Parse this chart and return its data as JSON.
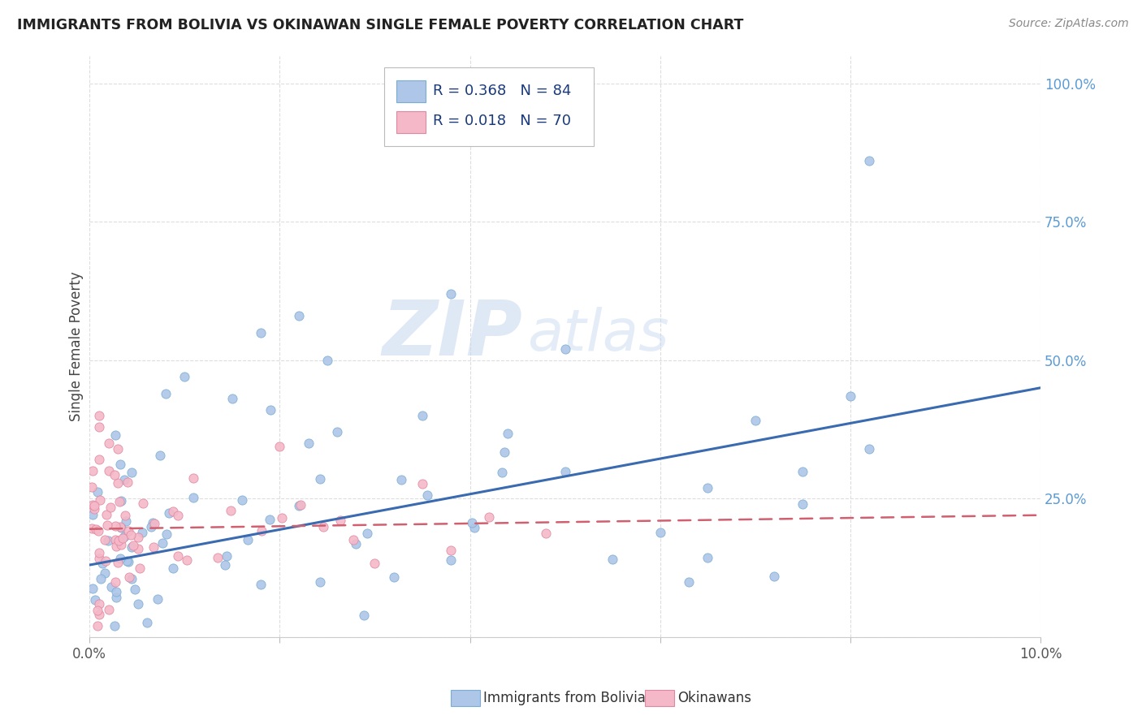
{
  "title": "IMMIGRANTS FROM BOLIVIA VS OKINAWAN SINGLE FEMALE POVERTY CORRELATION CHART",
  "source": "Source: ZipAtlas.com",
  "ylabel": "Single Female Poverty",
  "x_range": [
    0.0,
    0.1
  ],
  "y_range": [
    0.0,
    1.05
  ],
  "legend_R1": "R = 0.368",
  "legend_N1": "N = 84",
  "legend_R2": "R = 0.018",
  "legend_N2": "N = 70",
  "series1_color": "#aec6e8",
  "series1_edge": "#7aadd4",
  "series2_color": "#f5b8c8",
  "series2_edge": "#e088a0",
  "line1_color": "#3a6ab0",
  "line2_color": "#d06070",
  "watermark_zip": "ZIP",
  "watermark_atlas": "atlas",
  "background_color": "#ffffff",
  "grid_color": "#dddddd",
  "tick_color": "#5b9bd5",
  "title_color": "#222222",
  "label_color": "#444444",
  "source_color": "#888888"
}
